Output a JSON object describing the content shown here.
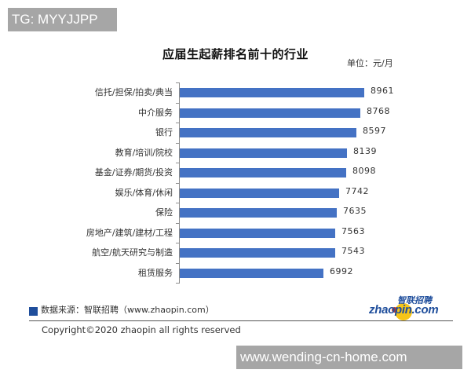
{
  "tag": "TG: MYYJJPP",
  "watermark": "www.wending-cn-home.com",
  "chart_data": {
    "type": "bar",
    "orientation": "horizontal",
    "title": "应届生起薪排名前十的行业",
    "unit_label": "单位：元/月",
    "xlabel": "",
    "ylabel": "",
    "categories": [
      "信托/担保/拍卖/典当",
      "中介服务",
      "银行",
      "教育/培训/院校",
      "基金/证券/期货/投资",
      "娱乐/体育/休闲",
      "保险",
      "房地产/建筑/建材/工程",
      "航空/航天研究与制造",
      "租赁服务"
    ],
    "values": [
      8961,
      8768,
      8597,
      8139,
      8098,
      7742,
      7635,
      7563,
      7543,
      6992
    ],
    "value_labels": [
      "8961",
      "8768",
      "8597",
      "8139",
      "8098",
      "7742",
      "7635",
      "7563",
      "7543",
      "6992"
    ],
    "bar_color": "#4472c4",
    "grid": false,
    "legend": null,
    "data_labels": true
  },
  "footer": {
    "source": "数据来源：智联招聘（www.zhaopin.com）",
    "copyright": "Copyright©2020 zhaopin all rights reserved",
    "logo_en": "zhaopin.com",
    "logo_cn": "智联招聘",
    "accent_color": "#1f4e9c"
  }
}
